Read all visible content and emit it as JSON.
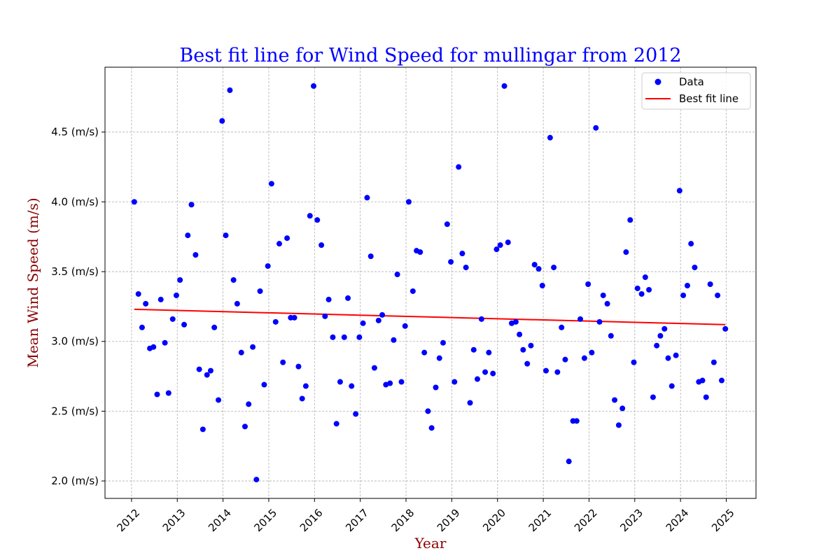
{
  "chart_data": {
    "type": "scatter",
    "title": "Best fit line for Wind Speed for mullingar from 2012",
    "xlabel": "Year",
    "ylabel": "Mean Wind Speed (m/s)",
    "xlim": [
      2011.42,
      2025.65
    ],
    "ylim": [
      1.875,
      4.965
    ],
    "x_ticks": [
      {
        "value": 2012,
        "label": "2012"
      },
      {
        "value": 2013,
        "label": "2013"
      },
      {
        "value": 2014,
        "label": "2014"
      },
      {
        "value": 2015,
        "label": "2015"
      },
      {
        "value": 2016,
        "label": "2016"
      },
      {
        "value": 2017,
        "label": "2017"
      },
      {
        "value": 2018,
        "label": "2018"
      },
      {
        "value": 2019,
        "label": "2019"
      },
      {
        "value": 2020,
        "label": "2020"
      },
      {
        "value": 2021,
        "label": "2021"
      },
      {
        "value": 2022,
        "label": "2022"
      },
      {
        "value": 2023,
        "label": "2023"
      },
      {
        "value": 2024,
        "label": "2024"
      },
      {
        "value": 2025,
        "label": "2025"
      }
    ],
    "y_ticks": [
      {
        "value": 2.0,
        "label": "2.0 (m/s)"
      },
      {
        "value": 2.5,
        "label": "2.5 (m/s)"
      },
      {
        "value": 3.0,
        "label": "3.0 (m/s)"
      },
      {
        "value": 3.5,
        "label": "3.5 (m/s)"
      },
      {
        "value": 4.0,
        "label": "4.0 (m/s)"
      },
      {
        "value": 4.5,
        "label": "4.5 (m/s)"
      }
    ],
    "grid": true,
    "legend_position": "top-right",
    "series": [
      {
        "name": "Data",
        "kind": "scatter",
        "color": "#0000ff",
        "points": [
          [
            2012.06,
            4.0
          ],
          [
            2012.15,
            3.34
          ],
          [
            2012.23,
            3.1
          ],
          [
            2012.31,
            3.27
          ],
          [
            2012.4,
            2.95
          ],
          [
            2012.48,
            2.96
          ],
          [
            2012.56,
            2.62
          ],
          [
            2012.64,
            3.3
          ],
          [
            2012.73,
            2.99
          ],
          [
            2012.81,
            2.63
          ],
          [
            2012.9,
            3.16
          ],
          [
            2012.98,
            3.33
          ],
          [
            2013.06,
            3.44
          ],
          [
            2013.15,
            3.12
          ],
          [
            2013.23,
            3.76
          ],
          [
            2013.31,
            3.98
          ],
          [
            2013.4,
            3.62
          ],
          [
            2013.48,
            2.8
          ],
          [
            2013.56,
            2.37
          ],
          [
            2013.65,
            2.76
          ],
          [
            2013.73,
            2.79
          ],
          [
            2013.81,
            3.1
          ],
          [
            2013.9,
            2.58
          ],
          [
            2013.98,
            4.58
          ],
          [
            2014.06,
            3.76
          ],
          [
            2014.15,
            4.8
          ],
          [
            2014.23,
            3.44
          ],
          [
            2014.31,
            3.27
          ],
          [
            2014.4,
            2.92
          ],
          [
            2014.48,
            2.39
          ],
          [
            2014.56,
            2.55
          ],
          [
            2014.65,
            2.96
          ],
          [
            2014.73,
            2.01
          ],
          [
            2014.81,
            3.36
          ],
          [
            2014.9,
            2.69
          ],
          [
            2014.98,
            3.54
          ],
          [
            2015.06,
            4.13
          ],
          [
            2015.15,
            3.14
          ],
          [
            2015.23,
            3.7
          ],
          [
            2015.31,
            2.85
          ],
          [
            2015.4,
            3.74
          ],
          [
            2015.48,
            3.17
          ],
          [
            2015.56,
            3.17
          ],
          [
            2015.65,
            2.82
          ],
          [
            2015.73,
            2.59
          ],
          [
            2015.81,
            2.68
          ],
          [
            2015.9,
            3.9
          ],
          [
            2015.98,
            4.83
          ],
          [
            2016.06,
            3.87
          ],
          [
            2016.15,
            3.69
          ],
          [
            2016.23,
            3.18
          ],
          [
            2016.31,
            3.3
          ],
          [
            2016.4,
            3.03
          ],
          [
            2016.48,
            2.41
          ],
          [
            2016.56,
            2.71
          ],
          [
            2016.65,
            3.03
          ],
          [
            2016.73,
            3.31
          ],
          [
            2016.81,
            2.68
          ],
          [
            2016.9,
            2.48
          ],
          [
            2016.98,
            3.03
          ],
          [
            2017.06,
            3.13
          ],
          [
            2017.15,
            4.03
          ],
          [
            2017.23,
            3.61
          ],
          [
            2017.31,
            2.81
          ],
          [
            2017.4,
            3.15
          ],
          [
            2017.48,
            3.19
          ],
          [
            2017.56,
            2.69
          ],
          [
            2017.65,
            2.7
          ],
          [
            2017.73,
            3.01
          ],
          [
            2017.81,
            3.48
          ],
          [
            2017.9,
            2.71
          ],
          [
            2017.98,
            3.11
          ],
          [
            2018.06,
            4.0
          ],
          [
            2018.15,
            3.36
          ],
          [
            2018.23,
            3.65
          ],
          [
            2018.31,
            3.64
          ],
          [
            2018.4,
            2.92
          ],
          [
            2018.48,
            2.5
          ],
          [
            2018.56,
            2.38
          ],
          [
            2018.65,
            2.67
          ],
          [
            2018.73,
            2.88
          ],
          [
            2018.81,
            2.99
          ],
          [
            2018.9,
            3.84
          ],
          [
            2018.98,
            3.57
          ],
          [
            2019.06,
            2.71
          ],
          [
            2019.15,
            4.25
          ],
          [
            2019.23,
            3.63
          ],
          [
            2019.31,
            3.53
          ],
          [
            2019.4,
            2.56
          ],
          [
            2019.48,
            2.94
          ],
          [
            2019.56,
            2.73
          ],
          [
            2019.65,
            3.16
          ],
          [
            2019.73,
            2.78
          ],
          [
            2019.81,
            2.92
          ],
          [
            2019.9,
            2.77
          ],
          [
            2019.98,
            3.66
          ],
          [
            2020.06,
            3.69
          ],
          [
            2020.15,
            4.83
          ],
          [
            2020.23,
            3.71
          ],
          [
            2020.31,
            3.13
          ],
          [
            2020.4,
            3.14
          ],
          [
            2020.48,
            3.05
          ],
          [
            2020.56,
            2.94
          ],
          [
            2020.65,
            2.84
          ],
          [
            2020.73,
            2.97
          ],
          [
            2020.81,
            3.55
          ],
          [
            2020.9,
            3.52
          ],
          [
            2020.98,
            3.4
          ],
          [
            2021.06,
            2.79
          ],
          [
            2021.15,
            4.46
          ],
          [
            2021.23,
            3.53
          ],
          [
            2021.31,
            2.78
          ],
          [
            2021.4,
            3.1
          ],
          [
            2021.48,
            2.87
          ],
          [
            2021.56,
            2.14
          ],
          [
            2021.65,
            2.43
          ],
          [
            2021.73,
            2.43
          ],
          [
            2021.81,
            3.16
          ],
          [
            2021.9,
            2.88
          ],
          [
            2021.98,
            3.41
          ],
          [
            2022.06,
            2.92
          ],
          [
            2022.15,
            4.53
          ],
          [
            2022.23,
            3.14
          ],
          [
            2022.31,
            3.33
          ],
          [
            2022.4,
            3.27
          ],
          [
            2022.48,
            3.04
          ],
          [
            2022.56,
            2.58
          ],
          [
            2022.65,
            2.4
          ],
          [
            2022.73,
            2.52
          ],
          [
            2022.81,
            3.64
          ],
          [
            2022.9,
            3.87
          ],
          [
            2022.98,
            2.85
          ],
          [
            2023.06,
            3.38
          ],
          [
            2023.15,
            3.34
          ],
          [
            2023.23,
            3.46
          ],
          [
            2023.31,
            3.37
          ],
          [
            2023.4,
            2.6
          ],
          [
            2023.48,
            2.97
          ],
          [
            2023.56,
            3.04
          ],
          [
            2023.65,
            3.09
          ],
          [
            2023.73,
            2.88
          ],
          [
            2023.81,
            2.68
          ],
          [
            2023.9,
            2.9
          ],
          [
            2023.98,
            4.08
          ],
          [
            2024.06,
            3.33
          ],
          [
            2024.15,
            3.4
          ],
          [
            2024.23,
            3.7
          ],
          [
            2024.31,
            3.53
          ],
          [
            2024.4,
            2.71
          ],
          [
            2024.48,
            2.72
          ],
          [
            2024.56,
            2.6
          ],
          [
            2024.65,
            3.41
          ],
          [
            2024.73,
            2.85
          ],
          [
            2024.81,
            3.33
          ],
          [
            2024.9,
            2.72
          ],
          [
            2024.98,
            3.09
          ]
        ]
      },
      {
        "name": "Best fit line",
        "kind": "line",
        "color": "#ff0000",
        "points": [
          [
            2012.06,
            3.23
          ],
          [
            2024.98,
            3.12
          ]
        ]
      }
    ]
  }
}
